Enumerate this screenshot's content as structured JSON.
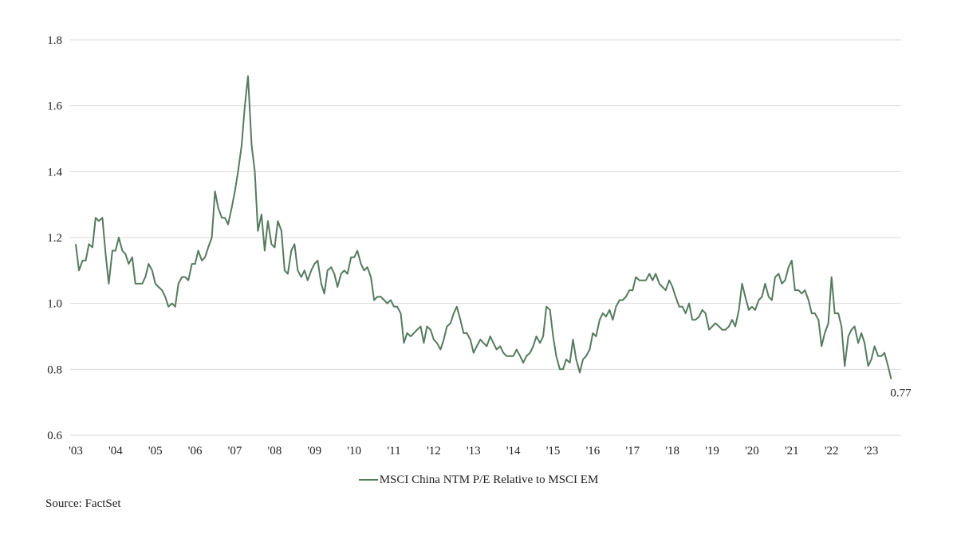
{
  "chart_data": {
    "type": "line",
    "title": "",
    "xlabel": "",
    "ylabel": "",
    "ylim": [
      0.6,
      1.8
    ],
    "xlim": [
      2003.0,
      2023.75
    ],
    "y_ticks": [
      "0.6",
      "0.8",
      "1.0",
      "1.2",
      "1.4",
      "1.6",
      "1.8"
    ],
    "x_ticks": [
      "'03",
      "'04",
      "'05",
      "'06",
      "'07",
      "'08",
      "'09",
      "'10",
      "'11",
      "'12",
      "'13",
      "'14",
      "'15",
      "'16",
      "'17",
      "'18",
      "'19",
      "'20",
      "'21",
      "'22",
      "'23"
    ],
    "grid": "horizontal",
    "line_color": "#557a5f",
    "series": [
      {
        "name": "MSCI China NTM P/E Relative to MSCI EM",
        "points": [
          [
            2003.0,
            1.18
          ],
          [
            2003.08,
            1.1
          ],
          [
            2003.17,
            1.13
          ],
          [
            2003.25,
            1.13
          ],
          [
            2003.33,
            1.18
          ],
          [
            2003.42,
            1.17
          ],
          [
            2003.5,
            1.26
          ],
          [
            2003.58,
            1.25
          ],
          [
            2003.67,
            1.26
          ],
          [
            2003.75,
            1.15
          ],
          [
            2003.83,
            1.06
          ],
          [
            2003.92,
            1.16
          ],
          [
            2004.0,
            1.16
          ],
          [
            2004.08,
            1.2
          ],
          [
            2004.17,
            1.16
          ],
          [
            2004.25,
            1.15
          ],
          [
            2004.33,
            1.12
          ],
          [
            2004.42,
            1.14
          ],
          [
            2004.5,
            1.06
          ],
          [
            2004.58,
            1.06
          ],
          [
            2004.67,
            1.06
          ],
          [
            2004.75,
            1.08
          ],
          [
            2004.83,
            1.12
          ],
          [
            2004.92,
            1.1
          ],
          [
            2005.0,
            1.06
          ],
          [
            2005.08,
            1.05
          ],
          [
            2005.17,
            1.04
          ],
          [
            2005.25,
            1.02
          ],
          [
            2005.33,
            0.99
          ],
          [
            2005.42,
            1.0
          ],
          [
            2005.5,
            0.99
          ],
          [
            2005.58,
            1.06
          ],
          [
            2005.67,
            1.08
          ],
          [
            2005.75,
            1.08
          ],
          [
            2005.83,
            1.07
          ],
          [
            2005.92,
            1.12
          ],
          [
            2006.0,
            1.12
          ],
          [
            2006.08,
            1.16
          ],
          [
            2006.17,
            1.13
          ],
          [
            2006.25,
            1.14
          ],
          [
            2006.33,
            1.17
          ],
          [
            2006.42,
            1.2
          ],
          [
            2006.5,
            1.34
          ],
          [
            2006.58,
            1.29
          ],
          [
            2006.67,
            1.26
          ],
          [
            2006.75,
            1.26
          ],
          [
            2006.83,
            1.24
          ],
          [
            2006.92,
            1.29
          ],
          [
            2007.0,
            1.34
          ],
          [
            2007.08,
            1.4
          ],
          [
            2007.17,
            1.48
          ],
          [
            2007.25,
            1.6
          ],
          [
            2007.33,
            1.69
          ],
          [
            2007.42,
            1.48
          ],
          [
            2007.5,
            1.4
          ],
          [
            2007.58,
            1.22
          ],
          [
            2007.67,
            1.27
          ],
          [
            2007.75,
            1.16
          ],
          [
            2007.83,
            1.25
          ],
          [
            2007.92,
            1.18
          ],
          [
            2008.0,
            1.17
          ],
          [
            2008.08,
            1.25
          ],
          [
            2008.17,
            1.22
          ],
          [
            2008.25,
            1.1
          ],
          [
            2008.33,
            1.09
          ],
          [
            2008.42,
            1.16
          ],
          [
            2008.5,
            1.18
          ],
          [
            2008.58,
            1.1
          ],
          [
            2008.67,
            1.08
          ],
          [
            2008.75,
            1.1
          ],
          [
            2008.83,
            1.07
          ],
          [
            2008.92,
            1.1
          ],
          [
            2009.0,
            1.12
          ],
          [
            2009.08,
            1.13
          ],
          [
            2009.17,
            1.06
          ],
          [
            2009.25,
            1.03
          ],
          [
            2009.33,
            1.1
          ],
          [
            2009.42,
            1.11
          ],
          [
            2009.5,
            1.09
          ],
          [
            2009.58,
            1.05
          ],
          [
            2009.67,
            1.09
          ],
          [
            2009.75,
            1.1
          ],
          [
            2009.83,
            1.09
          ],
          [
            2009.92,
            1.14
          ],
          [
            2010.0,
            1.14
          ],
          [
            2010.08,
            1.16
          ],
          [
            2010.17,
            1.12
          ],
          [
            2010.25,
            1.1
          ],
          [
            2010.33,
            1.11
          ],
          [
            2010.42,
            1.08
          ],
          [
            2010.5,
            1.01
          ],
          [
            2010.58,
            1.02
          ],
          [
            2010.67,
            1.02
          ],
          [
            2010.75,
            1.01
          ],
          [
            2010.83,
            1.0
          ],
          [
            2010.92,
            1.01
          ],
          [
            2011.0,
            0.99
          ],
          [
            2011.08,
            0.99
          ],
          [
            2011.17,
            0.97
          ],
          [
            2011.25,
            0.88
          ],
          [
            2011.33,
            0.91
          ],
          [
            2011.42,
            0.9
          ],
          [
            2011.5,
            0.91
          ],
          [
            2011.58,
            0.92
          ],
          [
            2011.67,
            0.93
          ],
          [
            2011.75,
            0.88
          ],
          [
            2011.83,
            0.93
          ],
          [
            2011.92,
            0.92
          ],
          [
            2012.0,
            0.89
          ],
          [
            2012.08,
            0.88
          ],
          [
            2012.17,
            0.86
          ],
          [
            2012.25,
            0.89
          ],
          [
            2012.33,
            0.93
          ],
          [
            2012.42,
            0.94
          ],
          [
            2012.5,
            0.97
          ],
          [
            2012.58,
            0.99
          ],
          [
            2012.67,
            0.95
          ],
          [
            2012.75,
            0.91
          ],
          [
            2012.83,
            0.91
          ],
          [
            2012.92,
            0.89
          ],
          [
            2013.0,
            0.85
          ],
          [
            2013.08,
            0.87
          ],
          [
            2013.17,
            0.89
          ],
          [
            2013.25,
            0.88
          ],
          [
            2013.33,
            0.87
          ],
          [
            2013.42,
            0.9
          ],
          [
            2013.5,
            0.88
          ],
          [
            2013.58,
            0.86
          ],
          [
            2013.67,
            0.87
          ],
          [
            2013.75,
            0.85
          ],
          [
            2013.83,
            0.84
          ],
          [
            2013.92,
            0.84
          ],
          [
            2014.0,
            0.84
          ],
          [
            2014.08,
            0.86
          ],
          [
            2014.17,
            0.84
          ],
          [
            2014.25,
            0.82
          ],
          [
            2014.33,
            0.84
          ],
          [
            2014.42,
            0.85
          ],
          [
            2014.5,
            0.87
          ],
          [
            2014.58,
            0.9
          ],
          [
            2014.67,
            0.88
          ],
          [
            2014.75,
            0.9
          ],
          [
            2014.83,
            0.99
          ],
          [
            2014.92,
            0.98
          ],
          [
            2015.0,
            0.9
          ],
          [
            2015.08,
            0.84
          ],
          [
            2015.17,
            0.8
          ],
          [
            2015.25,
            0.8
          ],
          [
            2015.33,
            0.83
          ],
          [
            2015.42,
            0.82
          ],
          [
            2015.5,
            0.89
          ],
          [
            2015.58,
            0.83
          ],
          [
            2015.67,
            0.79
          ],
          [
            2015.75,
            0.83
          ],
          [
            2015.83,
            0.84
          ],
          [
            2015.92,
            0.86
          ],
          [
            2016.0,
            0.91
          ],
          [
            2016.08,
            0.9
          ],
          [
            2016.17,
            0.95
          ],
          [
            2016.25,
            0.97
          ],
          [
            2016.33,
            0.96
          ],
          [
            2016.42,
            0.98
          ],
          [
            2016.5,
            0.95
          ],
          [
            2016.58,
            0.99
          ],
          [
            2016.67,
            1.01
          ],
          [
            2016.75,
            1.01
          ],
          [
            2016.83,
            1.02
          ],
          [
            2016.92,
            1.04
          ],
          [
            2017.0,
            1.04
          ],
          [
            2017.08,
            1.08
          ],
          [
            2017.17,
            1.07
          ],
          [
            2017.25,
            1.07
          ],
          [
            2017.33,
            1.07
          ],
          [
            2017.42,
            1.09
          ],
          [
            2017.5,
            1.07
          ],
          [
            2017.58,
            1.09
          ],
          [
            2017.67,
            1.06
          ],
          [
            2017.75,
            1.05
          ],
          [
            2017.83,
            1.04
          ],
          [
            2017.92,
            1.07
          ],
          [
            2018.0,
            1.05
          ],
          [
            2018.08,
            1.02
          ],
          [
            2018.17,
            0.99
          ],
          [
            2018.25,
            0.99
          ],
          [
            2018.33,
            0.97
          ],
          [
            2018.42,
            1.0
          ],
          [
            2018.5,
            0.95
          ],
          [
            2018.58,
            0.95
          ],
          [
            2018.67,
            0.96
          ],
          [
            2018.75,
            0.98
          ],
          [
            2018.83,
            0.97
          ],
          [
            2018.92,
            0.92
          ],
          [
            2019.0,
            0.93
          ],
          [
            2019.08,
            0.94
          ],
          [
            2019.17,
            0.93
          ],
          [
            2019.25,
            0.92
          ],
          [
            2019.33,
            0.92
          ],
          [
            2019.42,
            0.93
          ],
          [
            2019.5,
            0.95
          ],
          [
            2019.58,
            0.93
          ],
          [
            2019.67,
            0.98
          ],
          [
            2019.75,
            1.06
          ],
          [
            2019.83,
            1.02
          ],
          [
            2019.92,
            0.98
          ],
          [
            2020.0,
            0.99
          ],
          [
            2020.08,
            0.98
          ],
          [
            2020.17,
            1.01
          ],
          [
            2020.25,
            1.02
          ],
          [
            2020.33,
            1.06
          ],
          [
            2020.42,
            1.02
          ],
          [
            2020.5,
            1.01
          ],
          [
            2020.58,
            1.08
          ],
          [
            2020.67,
            1.09
          ],
          [
            2020.75,
            1.06
          ],
          [
            2020.83,
            1.07
          ],
          [
            2020.92,
            1.11
          ],
          [
            2021.0,
            1.13
          ],
          [
            2021.08,
            1.04
          ],
          [
            2021.17,
            1.04
          ],
          [
            2021.25,
            1.03
          ],
          [
            2021.33,
            1.04
          ],
          [
            2021.42,
            1.01
          ],
          [
            2021.5,
            0.97
          ],
          [
            2021.58,
            0.97
          ],
          [
            2021.67,
            0.95
          ],
          [
            2021.75,
            0.87
          ],
          [
            2021.83,
            0.91
          ],
          [
            2021.92,
            0.94
          ],
          [
            2022.0,
            1.08
          ],
          [
            2022.08,
            0.97
          ],
          [
            2022.17,
            0.97
          ],
          [
            2022.25,
            0.93
          ],
          [
            2022.33,
            0.81
          ],
          [
            2022.42,
            0.9
          ],
          [
            2022.5,
            0.92
          ],
          [
            2022.58,
            0.93
          ],
          [
            2022.67,
            0.88
          ],
          [
            2022.75,
            0.91
          ],
          [
            2022.83,
            0.88
          ],
          [
            2022.92,
            0.81
          ],
          [
            2023.0,
            0.83
          ],
          [
            2023.08,
            0.87
          ],
          [
            2023.17,
            0.84
          ],
          [
            2023.25,
            0.84
          ],
          [
            2023.33,
            0.85
          ],
          [
            2023.42,
            0.81
          ],
          [
            2023.5,
            0.77
          ]
        ]
      }
    ],
    "end_label": "0.77",
    "legend_label": "MSCI China NTM P/E Relative to MSCI EM",
    "legend_position": "bottom-center"
  },
  "source": "Source: FactSet"
}
